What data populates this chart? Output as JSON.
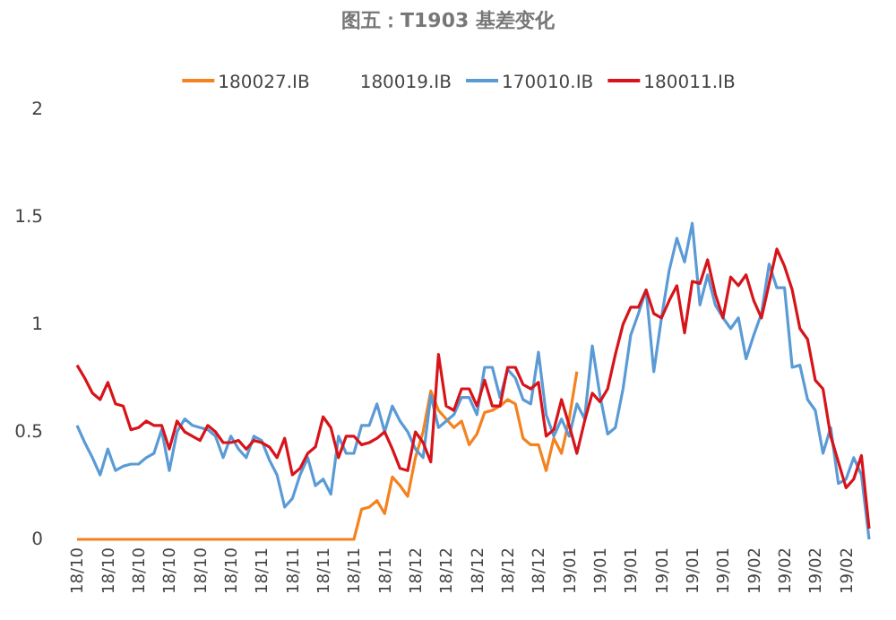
{
  "chart_data": {
    "type": "line",
    "title": "图五：T1903 基差变化",
    "categories": [
      "18/10",
      null,
      null,
      null,
      "18/10",
      null,
      null,
      null,
      "18/10",
      null,
      null,
      null,
      "18/10",
      null,
      null,
      null,
      "18/10",
      null,
      null,
      null,
      "18/10",
      null,
      null,
      null,
      "18/11",
      null,
      null,
      null,
      "18/11",
      null,
      null,
      null,
      "18/11",
      null,
      null,
      null,
      "18/11",
      null,
      null,
      null,
      "18/11",
      null,
      null,
      null,
      "18/12",
      null,
      null,
      null,
      "18/12",
      null,
      null,
      null,
      "18/12",
      null,
      null,
      null,
      "18/12",
      null,
      null,
      null,
      "18/12",
      null,
      null,
      null,
      "19/01",
      null,
      null,
      null,
      "19/01",
      null,
      null,
      null,
      "19/01",
      null,
      null,
      null,
      "19/01",
      null,
      null,
      null,
      "19/01",
      null,
      null,
      null,
      "19/01",
      null,
      null,
      null,
      "19/02",
      null,
      null,
      null,
      "19/02",
      null,
      null,
      null,
      "19/02",
      null,
      null,
      null,
      "19/02",
      null,
      null,
      null
    ],
    "series": [
      {
        "name": "180027.IB",
        "color": "#f4821f",
        "values": [
          0,
          0,
          0,
          0,
          0,
          0,
          0,
          0,
          0,
          0,
          0,
          0,
          0,
          0,
          0,
          0,
          0,
          0,
          0,
          0,
          0,
          0,
          0,
          0,
          0,
          0,
          0,
          0,
          0,
          0,
          0,
          0,
          0,
          0,
          0,
          0,
          0,
          0.14,
          0.15,
          0.18,
          0.12,
          0.29,
          0.25,
          0.2,
          0.38,
          0.5,
          0.69,
          0.6,
          0.56,
          0.52,
          0.55,
          0.44,
          0.49,
          0.59,
          0.6,
          0.62,
          0.65,
          0.63,
          0.47,
          0.44,
          0.44,
          0.32,
          0.47,
          0.4,
          0.56,
          0.78,
          null,
          null,
          null,
          null,
          null,
          null,
          null,
          null,
          null,
          null,
          null,
          null,
          null,
          null,
          null,
          null,
          null,
          null,
          null,
          null,
          null,
          null,
          null,
          null,
          null,
          null,
          null,
          null,
          null,
          null,
          null,
          null,
          null,
          null,
          null,
          null,
          null,
          null
        ]
      },
      {
        "name": "180019.IB",
        "values": [
          null,
          null,
          null,
          null,
          null,
          null,
          null,
          null,
          null,
          null,
          null,
          null,
          null,
          null,
          null,
          null,
          null,
          null,
          null,
          null,
          null,
          null,
          null,
          null,
          null,
          null,
          null,
          null,
          null,
          null,
          null,
          null,
          null,
          null,
          null,
          null,
          null,
          null,
          null,
          null,
          null,
          null,
          null,
          null,
          null,
          null,
          null,
          null,
          null,
          null,
          null,
          null,
          null,
          null,
          null,
          null,
          null,
          null,
          null,
          null,
          null,
          null,
          null,
          null,
          null,
          null,
          null,
          null,
          null,
          null,
          null,
          null,
          null,
          null,
          null,
          null,
          null,
          null,
          null,
          null,
          null,
          null,
          null,
          null,
          null,
          null,
          null,
          null,
          null,
          null,
          null,
          null,
          null,
          null,
          null,
          null,
          null,
          null,
          null,
          null,
          null,
          null,
          null,
          null
        ]
      },
      {
        "name": "170010.IB",
        "color": "#5b9bd5",
        "values": [
          0.53,
          0.45,
          0.38,
          0.3,
          0.42,
          0.32,
          0.34,
          0.35,
          0.35,
          0.38,
          0.4,
          0.51,
          0.32,
          0.5,
          0.56,
          0.53,
          0.52,
          0.51,
          0.48,
          0.38,
          0.48,
          0.42,
          0.38,
          0.48,
          0.46,
          0.37,
          0.3,
          0.15,
          0.19,
          0.3,
          0.38,
          0.25,
          0.28,
          0.21,
          0.48,
          0.4,
          0.4,
          0.53,
          0.53,
          0.63,
          0.5,
          0.62,
          0.55,
          0.5,
          0.42,
          0.38,
          0.67,
          0.52,
          0.55,
          0.58,
          0.66,
          0.66,
          0.58,
          0.8,
          0.8,
          0.66,
          0.79,
          0.75,
          0.65,
          0.63,
          0.87,
          0.58,
          0.48,
          0.56,
          0.48,
          0.63,
          0.56,
          0.9,
          0.67,
          0.49,
          0.52,
          0.7,
          0.95,
          1.05,
          1.16,
          0.78,
          1.03,
          1.25,
          1.4,
          1.29,
          1.47,
          1.09,
          1.23,
          1.09,
          1.03,
          0.98,
          1.03,
          0.84,
          0.95,
          1.05,
          1.28,
          1.17,
          1.17,
          0.8,
          0.81,
          0.65,
          0.6,
          0.4,
          0.52,
          0.26,
          0.28,
          0.38,
          0.3,
          0
        ]
      },
      {
        "name": "180011.IB",
        "color": "#d7141a",
        "values": [
          0.81,
          0.75,
          0.68,
          0.65,
          0.73,
          0.63,
          0.62,
          0.51,
          0.52,
          0.55,
          0.53,
          0.53,
          0.42,
          0.55,
          0.5,
          0.48,
          0.46,
          0.53,
          0.5,
          0.45,
          0.45,
          0.46,
          0.42,
          0.46,
          0.45,
          0.43,
          0.38,
          0.47,
          0.3,
          0.33,
          0.4,
          0.43,
          0.57,
          0.52,
          0.38,
          0.48,
          0.48,
          0.44,
          0.45,
          0.47,
          0.5,
          0.42,
          0.33,
          0.32,
          0.5,
          0.45,
          0.36,
          0.86,
          0.62,
          0.6,
          0.7,
          0.7,
          0.62,
          0.74,
          0.62,
          0.62,
          0.8,
          0.8,
          0.72,
          0.7,
          0.73,
          0.48,
          0.51,
          0.65,
          0.53,
          0.4,
          0.55,
          0.68,
          0.64,
          0.7,
          0.86,
          1.0,
          1.08,
          1.08,
          1.16,
          1.05,
          1.03,
          1.11,
          1.18,
          0.96,
          1.2,
          1.19,
          1.3,
          1.14,
          1.03,
          1.22,
          1.18,
          1.23,
          1.11,
          1.03,
          1.19,
          1.35,
          1.27,
          1.16,
          0.98,
          0.93,
          0.74,
          0.7,
          0.48,
          0.36,
          0.24,
          0.28,
          0.39,
          0.05
        ]
      }
    ],
    "ylim": [
      0,
      2
    ],
    "yticks": [
      0,
      0.5,
      1,
      1.5,
      2
    ],
    "grid": false,
    "legend": "top",
    "line_style": "solid",
    "marker": "none"
  }
}
